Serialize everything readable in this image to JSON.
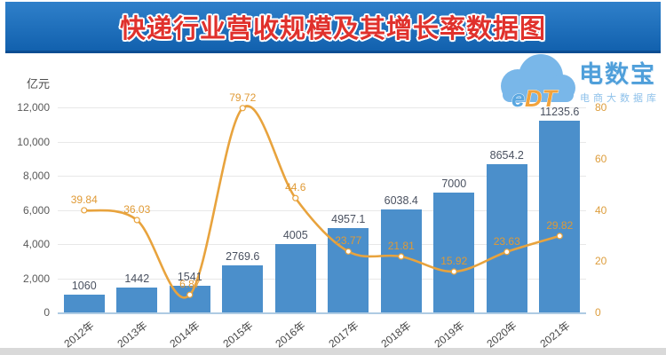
{
  "header": {
    "title": "快递行业营收规模及其增长率数据图"
  },
  "watermark": {
    "logo_e": "e",
    "logo_dt": "DT",
    "brand": "电数宝",
    "tagline": "电商大数据库"
  },
  "chart_data": {
    "type": "bar",
    "title": "快递行业营收规模及其增长率数据图",
    "categories": [
      "2012年",
      "2013年",
      "2014年",
      "2015年",
      "2016年",
      "2017年",
      "2018年",
      "2019年",
      "2020年",
      "2021年"
    ],
    "series": [
      {
        "name": "营收规模",
        "type": "bar",
        "axis": "left",
        "unit": "亿元",
        "values": [
          1060,
          1442,
          1541,
          2769.6,
          4005,
          4957.1,
          6038.4,
          7000,
          8654.2,
          11235.6
        ],
        "labels": [
          "1060",
          "1442",
          "1541",
          "2769.6",
          "4005",
          "4957.1",
          "6038.4",
          "7000",
          "8654.2",
          "11235.6"
        ]
      },
      {
        "name": "增长率",
        "type": "line",
        "axis": "right",
        "unit": "%",
        "values": [
          39.84,
          36.03,
          6.87,
          79.72,
          44.6,
          23.77,
          21.81,
          15.92,
          23.63,
          29.82
        ],
        "labels": [
          "39.84",
          "36.03",
          "6.87",
          "79.72",
          "44.6",
          "23.77",
          "21.81",
          "15.92",
          "23.63",
          "29.82"
        ]
      }
    ],
    "left_axis": {
      "title": "亿元",
      "max": 12000,
      "ticks": [
        "12,000",
        "10,000",
        "8,000",
        "6,000",
        "4,000",
        "2,000",
        "0"
      ]
    },
    "right_axis": {
      "max": 80,
      "ticks": [
        "80",
        "60",
        "40",
        "20",
        "0"
      ]
    },
    "grid": true,
    "legend": false,
    "colors": {
      "bar": "#4b8fcb",
      "line": "#e8a33d",
      "banner": "#1568ba",
      "title_red": "#e0312c",
      "bar_label": "#4a5160",
      "line_label": "#e09a35"
    }
  }
}
